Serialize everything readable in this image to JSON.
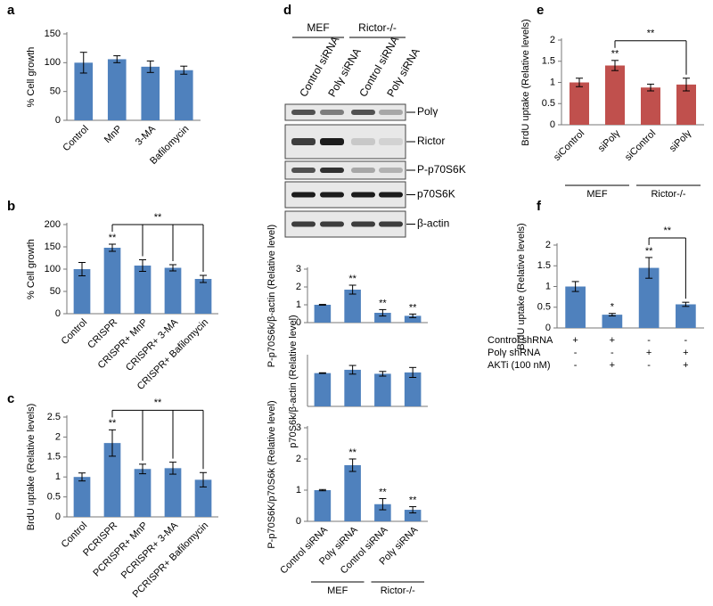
{
  "chart_data": [
    {
      "type": "bar",
      "panel": "a",
      "ylabel": "% Cell growth",
      "categories": [
        "Control",
        "MnP",
        "3-MA",
        "Bafilomycin"
      ],
      "values": [
        100,
        106,
        93,
        87
      ],
      "errors": [
        18,
        6,
        10,
        7
      ],
      "color": "#4f81bd",
      "ylim": [
        0,
        150
      ],
      "yticks": [
        0,
        50,
        100,
        150
      ]
    },
    {
      "type": "bar",
      "panel": "b",
      "ylabel": "% Cell growth",
      "categories": [
        "Control",
        "CRISPR",
        "CRISPR+ MnP",
        "CRISPR+ 3-MA",
        "CRISPR+ Bafilomycin"
      ],
      "values": [
        100,
        148,
        108,
        103,
        78
      ],
      "errors": [
        15,
        8,
        13,
        7,
        8
      ],
      "annotations": [
        null,
        "**",
        null,
        null,
        null
      ],
      "bracket_label": "**",
      "color": "#4f81bd",
      "ylim": [
        0,
        200
      ],
      "yticks": [
        0,
        50,
        100,
        150,
        200
      ]
    },
    {
      "type": "bar",
      "panel": "c",
      "ylabel": "BrdU uptake (Relative levels)",
      "categories": [
        "Control",
        "PCRISPR",
        "PCRISPR+ MnP",
        "PCRISPR+ 3-MA",
        "PCRISPR+ Bafilomycin"
      ],
      "values": [
        1,
        1.85,
        1.2,
        1.22,
        0.93
      ],
      "errors": [
        0.1,
        0.33,
        0.12,
        0.15,
        0.18
      ],
      "annotations": [
        null,
        "**",
        null,
        null,
        null
      ],
      "bracket_label": "**",
      "color": "#4f81bd",
      "ylim": [
        0,
        2.5
      ],
      "yticks": [
        0,
        0.5,
        1,
        1.5,
        2,
        2.5
      ]
    },
    {
      "type": "bar",
      "ylabel": "P-p70S6k/β-actin (Relative level)",
      "values": [
        1,
        1.85,
        0.55,
        0.38
      ],
      "errors": [
        0.02,
        0.25,
        0.18,
        0.1
      ],
      "annotations": [
        null,
        "**",
        "**",
        "**"
      ],
      "color": "#4f81bd",
      "ylim": [
        0,
        3
      ],
      "yticks": [
        0,
        1,
        2,
        3
      ]
    },
    {
      "type": "bar",
      "ylabel": "p70S6k/β-actin (Relative level)",
      "values": [
        1,
        1.1,
        0.98,
        1.02
      ],
      "errors": [
        0.01,
        0.13,
        0.07,
        0.15
      ],
      "color": "#4f81bd",
      "ylim": [
        0,
        1.5
      ]
    },
    {
      "type": "bar",
      "ylabel": "P-p70S6K/p70S6k (Relative level)",
      "categories": [
        "Control siRNA",
        "Polγ siRNA",
        "Control siRNA",
        "Polγ siRNA"
      ],
      "groups": [
        "MEF",
        "Rictor-/-"
      ],
      "values": [
        1,
        1.8,
        0.55,
        0.37
      ],
      "errors": [
        0.02,
        0.2,
        0.18,
        0.1
      ],
      "annotations": [
        null,
        "**",
        "**",
        "**"
      ],
      "color": "#4f81bd",
      "ylim": [
        0,
        3
      ],
      "yticks": [
        0,
        1,
        2,
        3
      ]
    },
    {
      "type": "bar",
      "panel": "e",
      "ylabel": "BrdU uptake (Relative levels)",
      "categories": [
        "siControl",
        "siPolγ",
        "siControl",
        "siPolγ"
      ],
      "groups": [
        "MEF",
        "Rictor-/-"
      ],
      "values": [
        1,
        1.4,
        0.88,
        0.95
      ],
      "errors": [
        0.1,
        0.12,
        0.08,
        0.15
      ],
      "annotations": [
        null,
        "**",
        null,
        null
      ],
      "bracket_label": "**",
      "color": "#c0504d",
      "ylim": [
        0,
        2
      ],
      "yticks": [
        0,
        0.5,
        1,
        1.5,
        2
      ]
    },
    {
      "type": "bar",
      "panel": "f",
      "ylabel": "BrdU uptake (Relative levels)",
      "values": [
        1,
        0.32,
        1.45,
        0.57
      ],
      "errors": [
        0.12,
        0.03,
        0.25,
        0.05
      ],
      "annotations": [
        null,
        "*",
        "**",
        null
      ],
      "bracket_label": "**",
      "conditions": [
        {
          "name": "Control shRNA",
          "values": [
            "+",
            "+",
            "-",
            "-"
          ]
        },
        {
          "name": "Polγ shRNA",
          "values": [
            "-",
            "-",
            "+",
            "+"
          ]
        },
        {
          "name": "AKTi (100 nM)",
          "values": [
            "-",
            "+",
            "-",
            "+"
          ]
        }
      ],
      "color": "#4f81bd",
      "ylim": [
        0,
        2
      ],
      "yticks": [
        0,
        0.5,
        1,
        1.5,
        2
      ]
    }
  ],
  "blot": {
    "panel": "d",
    "groups": [
      "MEF",
      "Rictor-/-"
    ],
    "lanes": [
      "Control siRNA",
      "Polγ siRNA",
      "Control siRNA",
      "Polγ siRNA"
    ],
    "rows": [
      "Polγ",
      "Rictor",
      "P-p70S6K",
      "p70S6K",
      "β-actin"
    ]
  }
}
